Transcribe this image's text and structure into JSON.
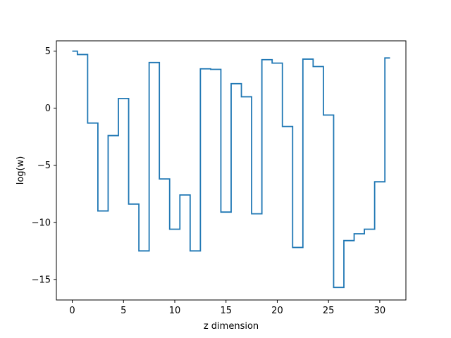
{
  "chart_data": {
    "type": "line",
    "drawstyle": "steps-mid",
    "title": "",
    "xlabel": "z dimension",
    "ylabel": "log(w)",
    "xlim": [
      -1.55,
      32.55
    ],
    "ylim": [
      -16.8,
      5.9
    ],
    "xticks": [
      0,
      5,
      10,
      15,
      20,
      25,
      30
    ],
    "yticks": [
      5,
      0,
      -5,
      -10,
      -15
    ],
    "ytick_labels": [
      "5",
      "0",
      "−5",
      "−10",
      "−15"
    ],
    "grid": false,
    "legend": "none",
    "series": [
      {
        "color": "#1f77b4",
        "x": [
          0,
          1,
          2,
          3,
          4,
          5,
          6,
          7,
          8,
          9,
          10,
          11,
          12,
          13,
          14,
          15,
          16,
          17,
          18,
          19,
          20,
          21,
          22,
          23,
          24,
          25,
          26,
          27,
          28,
          29,
          30,
          31
        ],
        "y": [
          5.0,
          4.7,
          -1.3,
          -9.0,
          -2.4,
          0.85,
          -8.4,
          -12.5,
          4.0,
          -6.2,
          -10.6,
          -7.6,
          -12.5,
          3.45,
          3.4,
          -9.1,
          2.15,
          1.0,
          -9.25,
          4.25,
          3.95,
          -1.6,
          -12.2,
          4.3,
          3.65,
          -0.6,
          -15.7,
          -11.6,
          -11.0,
          -10.6,
          -6.45,
          4.4
        ]
      }
    ]
  }
}
